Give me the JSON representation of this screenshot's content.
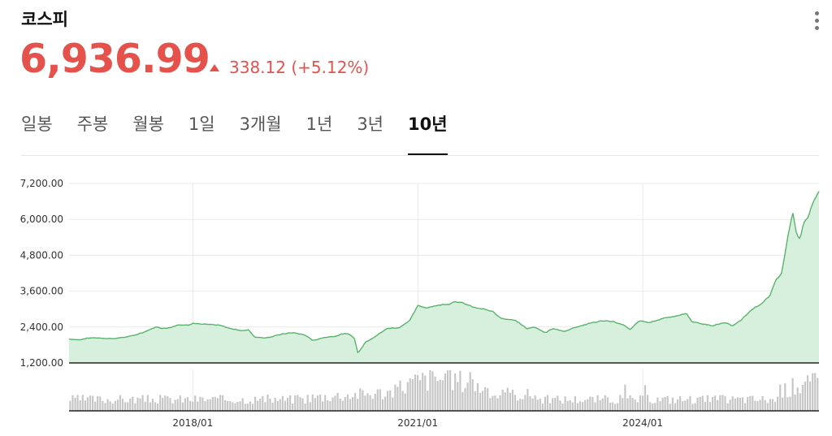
{
  "header": {
    "title": "코스피",
    "price": "6,936.99",
    "change": "338.12 (+5.12%)",
    "more_icon": "more-vertical-icon"
  },
  "colors": {
    "up": "#e5524b",
    "line": "#59b36b",
    "area": "#d7f0dd",
    "volume": "#c6c6c6",
    "grid": "#e9e9e9"
  },
  "tabs": [
    {
      "label": "일봉",
      "active": false
    },
    {
      "label": "주봉",
      "active": false
    },
    {
      "label": "월봉",
      "active": false
    },
    {
      "label": "1일",
      "active": false
    },
    {
      "label": "3개월",
      "active": false
    },
    {
      "label": "1년",
      "active": false
    },
    {
      "label": "3년",
      "active": false
    },
    {
      "label": "10년",
      "active": true
    }
  ],
  "chart_data": {
    "type": "area",
    "y_ticks": [
      "7,200.00",
      "6,000.00",
      "4,800.00",
      "3,600.00",
      "2,400.00",
      "1,200.00"
    ],
    "ylim": [
      1200,
      7200
    ],
    "x_ticks": [
      {
        "label": "2018/01",
        "x": 2018.0
      },
      {
        "label": "2021/01",
        "x": 2021.0
      },
      {
        "label": "2024/01",
        "x": 2024.0
      }
    ],
    "xlim": [
      2016.35,
      2026.35
    ],
    "grid": true,
    "price_points": [
      [
        2016.35,
        2000
      ],
      [
        2016.5,
        1980
      ],
      [
        2016.6,
        2030
      ],
      [
        2016.75,
        2040
      ],
      [
        2016.9,
        2020
      ],
      [
        2017.0,
        2030
      ],
      [
        2017.2,
        2100
      ],
      [
        2017.35,
        2240
      ],
      [
        2017.5,
        2400
      ],
      [
        2017.65,
        2360
      ],
      [
        2017.8,
        2480
      ],
      [
        2017.95,
        2470
      ],
      [
        2018.0,
        2560
      ],
      [
        2018.08,
        2520
      ],
      [
        2018.2,
        2480
      ],
      [
        2018.35,
        2450
      ],
      [
        2018.5,
        2350
      ],
      [
        2018.65,
        2290
      ],
      [
        2018.75,
        2300
      ],
      [
        2018.82,
        2080
      ],
      [
        2018.95,
        2040
      ],
      [
        2019.05,
        2070
      ],
      [
        2019.2,
        2180
      ],
      [
        2019.35,
        2210
      ],
      [
        2019.5,
        2130
      ],
      [
        2019.6,
        1950
      ],
      [
        2019.75,
        2050
      ],
      [
        2019.9,
        2100
      ],
      [
        2020.0,
        2180
      ],
      [
        2020.1,
        2150
      ],
      [
        2020.16,
        2000
      ],
      [
        2020.2,
        1520
      ],
      [
        2020.3,
        1900
      ],
      [
        2020.45,
        2130
      ],
      [
        2020.6,
        2360
      ],
      [
        2020.75,
        2380
      ],
      [
        2020.9,
        2650
      ],
      [
        2021.0,
        3100
      ],
      [
        2021.1,
        3050
      ],
      [
        2021.25,
        3130
      ],
      [
        2021.4,
        3170
      ],
      [
        2021.5,
        3280
      ],
      [
        2021.6,
        3200
      ],
      [
        2021.75,
        3050
      ],
      [
        2021.9,
        2980
      ],
      [
        2022.0,
        2900
      ],
      [
        2022.1,
        2700
      ],
      [
        2022.3,
        2650
      ],
      [
        2022.45,
        2350
      ],
      [
        2022.55,
        2400
      ],
      [
        2022.7,
        2200
      ],
      [
        2022.8,
        2350
      ],
      [
        2022.95,
        2250
      ],
      [
        2023.1,
        2400
      ],
      [
        2023.3,
        2530
      ],
      [
        2023.45,
        2600
      ],
      [
        2023.6,
        2600
      ],
      [
        2023.75,
        2450
      ],
      [
        2023.83,
        2300
      ],
      [
        2023.95,
        2600
      ],
      [
        2024.1,
        2550
      ],
      [
        2024.3,
        2720
      ],
      [
        2024.5,
        2800
      ],
      [
        2024.58,
        2850
      ],
      [
        2024.65,
        2600
      ],
      [
        2024.8,
        2500
      ],
      [
        2024.95,
        2450
      ],
      [
        2025.1,
        2550
      ],
      [
        2025.2,
        2450
      ],
      [
        2025.3,
        2600
      ],
      [
        2025.42,
        2900
      ],
      [
        2025.5,
        3100
      ],
      [
        2025.6,
        3200
      ],
      [
        2025.7,
        3450
      ],
      [
        2025.78,
        4000
      ],
      [
        2025.85,
        4200
      ],
      [
        2025.9,
        4900
      ],
      [
        2025.95,
        5600
      ],
      [
        2026.0,
        6250
      ],
      [
        2026.05,
        5500
      ],
      [
        2026.1,
        5350
      ],
      [
        2026.15,
        5900
      ],
      [
        2026.22,
        6200
      ],
      [
        2026.28,
        6650
      ],
      [
        2026.35,
        6936.99
      ]
    ]
  }
}
